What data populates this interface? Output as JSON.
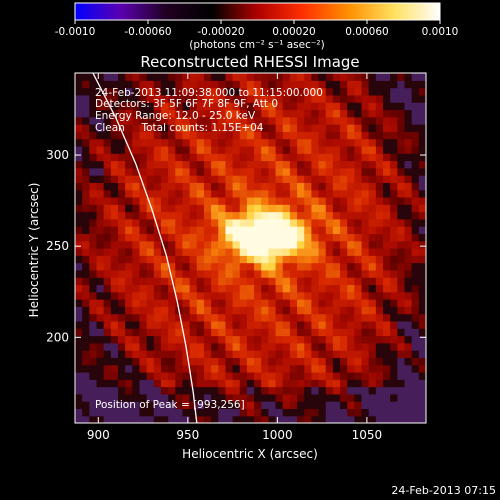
{
  "chart_data": {
    "type": "heatmap",
    "title": "Reconstructed RHESSI Image",
    "xlabel": "Heliocentric X (arcsec)",
    "ylabel": "Heliocentric Y (arcsec)",
    "xlim": [
      887,
      1083
    ],
    "ylim": [
      153,
      345
    ],
    "x_ticks": [
      900,
      950,
      1000,
      1050
    ],
    "y_ticks": [
      200,
      250,
      300
    ],
    "colorbar": {
      "range": [
        -0.001,
        0.001
      ],
      "ticks": [
        "-0.0010",
        "-0.00060",
        "-0.00020",
        "0.00020",
        "0.00060",
        "0.0010"
      ],
      "unit_label": "(photons cm⁻² s⁻¹ asec⁻²)",
      "colors": [
        "#0000ff",
        "#5a00b0",
        "#200020",
        "#000000",
        "#b00000",
        "#ff3000",
        "#ff9000",
        "#ffe060",
        "#ffffff"
      ]
    },
    "peak": {
      "x": 993,
      "y": 256
    },
    "limb_curve": [
      [
        897,
        345
      ],
      [
        910,
        320
      ],
      [
        921,
        295
      ],
      [
        930,
        270
      ],
      [
        938,
        245
      ],
      [
        944,
        220
      ],
      [
        949,
        195
      ],
      [
        953,
        170
      ],
      [
        955,
        153
      ]
    ],
    "annotations": {
      "time": "24-Feb-2013 11:09:38.000 to 11:15:00.000",
      "detectors": "Detectors: 3F 5F 6F 7F 8F 9F, Att 0",
      "energy": "Energy Range: 12.0 - 25.0 keV",
      "clean": "Clean     Total counts: 1.15E+04",
      "peak_text": "Position of Peak = [993,256]"
    }
  },
  "footer": {
    "timestamp": "24-Feb-2013 07:15"
  }
}
